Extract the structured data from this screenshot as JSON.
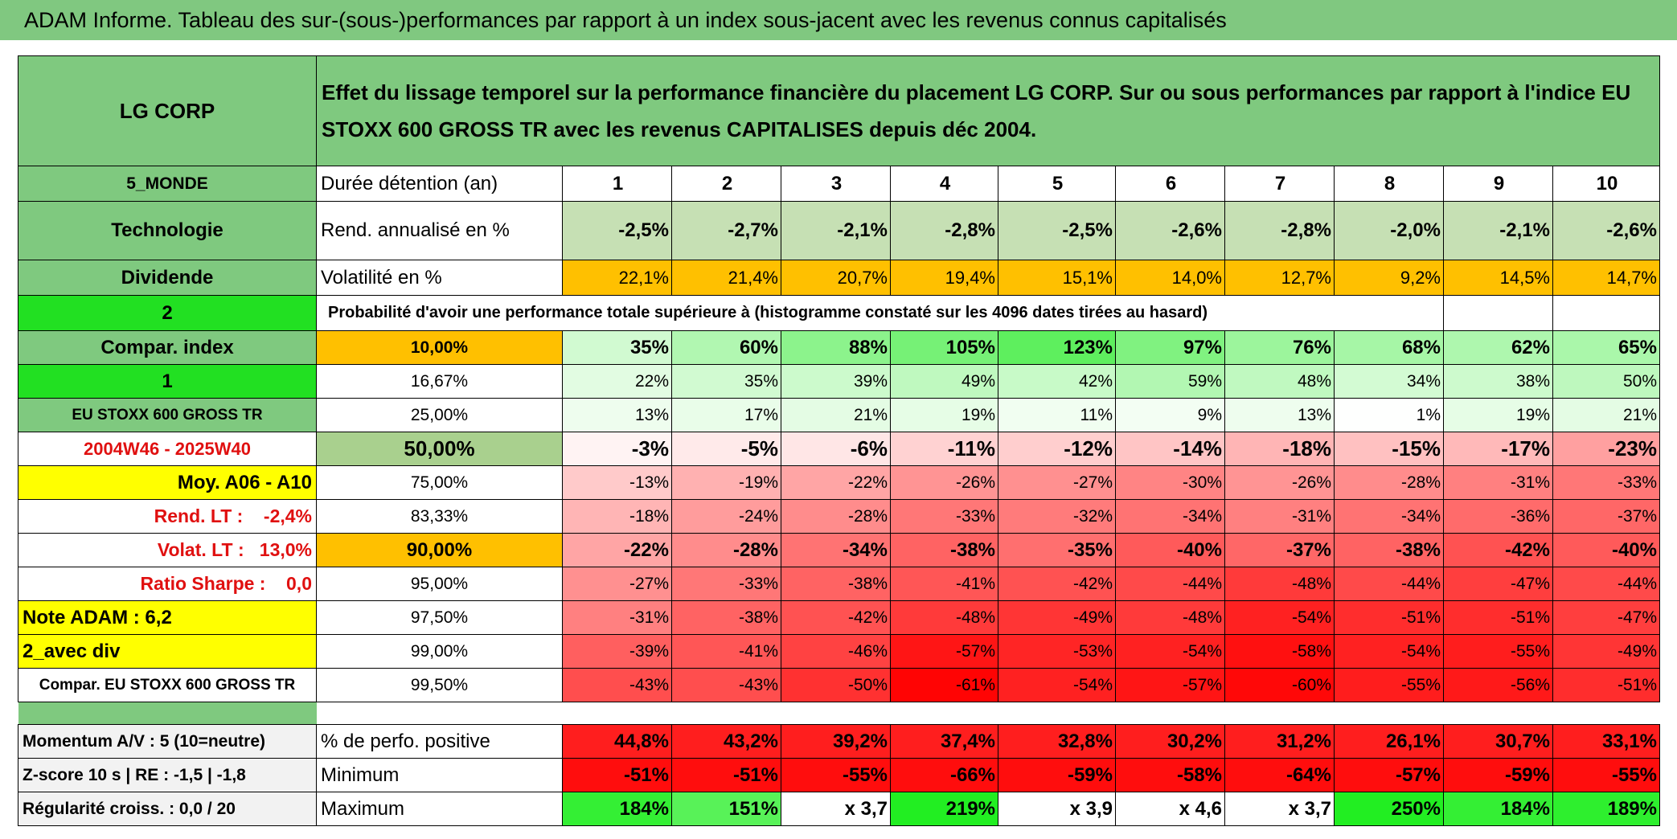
{
  "header": {
    "title": "ADAM Informe. Tableau des sur-(sous-)performances par rapport à un index sous-jacent avec les revenus connus capitalisés"
  },
  "table": {
    "corner": "LG CORP",
    "description": "Effet du lissage temporel sur la performance financière du placement LG CORP. Sur ou sous performances par rapport à l'indice EU STOXX 600 GROSS TR avec les revenus CAPITALISES depuis déc 2004.",
    "rows": [
      [
        "5_MONDE",
        "Durée détention (an)",
        "1",
        "2",
        "3",
        "4",
        "5",
        "6",
        "7",
        "8",
        "9",
        "10"
      ],
      [
        "Technologie",
        "Rend. annualisé en %",
        "-2,5%",
        "-2,7%",
        "-2,1%",
        "-2,8%",
        "-2,5%",
        "-2,6%",
        "-2,8%",
        "-2,0%",
        "-2,1%",
        "-2,6%"
      ],
      [
        "Dividende",
        "Volatilité en %",
        "22,1%",
        "21,4%",
        "20,7%",
        "19,4%",
        "15,1%",
        "14,0%",
        "12,7%",
        "9,2%",
        "14,5%",
        "14,7%"
      ],
      [
        "2",
        "Probabilité d'avoir une performance totale supérieure à (histogramme constaté sur les 4096 dates tirées au hasard)"
      ],
      [
        "Compar. index",
        "10,00%",
        "35%",
        "60%",
        "88%",
        "105%",
        "123%",
        "97%",
        "76%",
        "68%",
        "62%",
        "65%"
      ],
      [
        "1",
        "16,67%",
        "22%",
        "35%",
        "39%",
        "49%",
        "42%",
        "59%",
        "48%",
        "34%",
        "38%",
        "50%"
      ],
      [
        "EU STOXX 600 GROSS TR",
        "25,00%",
        "13%",
        "17%",
        "21%",
        "19%",
        "11%",
        "9%",
        "13%",
        "1%",
        "19%",
        "21%"
      ],
      [
        "2004W46 - 2025W40",
        "50,00%",
        "-3%",
        "-5%",
        "-6%",
        "-11%",
        "-12%",
        "-14%",
        "-18%",
        "-15%",
        "-17%",
        "-23%"
      ],
      [
        "Moy. A06 - A10",
        "75,00%",
        "-13%",
        "-19%",
        "-22%",
        "-26%",
        "-27%",
        "-30%",
        "-26%",
        "-28%",
        "-31%",
        "-33%"
      ],
      [
        "Rend. LT :    -2,4%",
        "83,33%",
        "-18%",
        "-24%",
        "-28%",
        "-33%",
        "-32%",
        "-34%",
        "-31%",
        "-34%",
        "-36%",
        "-37%"
      ],
      [
        "Volat. LT :   13,0%",
        "90,00%",
        "-22%",
        "-28%",
        "-34%",
        "-38%",
        "-35%",
        "-40%",
        "-37%",
        "-38%",
        "-42%",
        "-40%"
      ],
      [
        "Ratio Sharpe :    0,0",
        "95,00%",
        "-27%",
        "-33%",
        "-38%",
        "-41%",
        "-42%",
        "-44%",
        "-48%",
        "-44%",
        "-47%",
        "-44%"
      ],
      [
        "Note ADAM : 6,2",
        "97,50%",
        "-31%",
        "-38%",
        "-42%",
        "-48%",
        "-49%",
        "-48%",
        "-54%",
        "-51%",
        "-51%",
        "-47%"
      ],
      [
        "2_avec div",
        "99,00%",
        "-39%",
        "-41%",
        "-46%",
        "-57%",
        "-53%",
        "-54%",
        "-58%",
        "-54%",
        "-55%",
        "-49%"
      ],
      [
        "Compar. EU STOXX 600 GROSS TR",
        "99,50%",
        "-43%",
        "-43%",
        "-50%",
        "-61%",
        "-54%",
        "-57%",
        "-60%",
        "-55%",
        "-56%",
        "-51%"
      ],
      [
        "Momentum A/V : 5 (10=neutre)",
        "% de perfo. positive",
        "44,8%",
        "43,2%",
        "39,2%",
        "37,4%",
        "32,8%",
        "30,2%",
        "31,2%",
        "26,1%",
        "30,7%",
        "33,1%"
      ],
      [
        "Z-score 10 s | RE : -1,5 | -1,8",
        "Minimum",
        "-51%",
        "-51%",
        "-55%",
        "-66%",
        "-59%",
        "-58%",
        "-64%",
        "-57%",
        "-59%",
        "-55%"
      ],
      [
        "Régularité croiss. : 0,0 / 20",
        "Maximum",
        "184%",
        "151%",
        "x 3,7",
        "219%",
        "x 3,9",
        "x 4,6",
        "x 3,7",
        "250%",
        "184%",
        "189%"
      ]
    ]
  }
}
